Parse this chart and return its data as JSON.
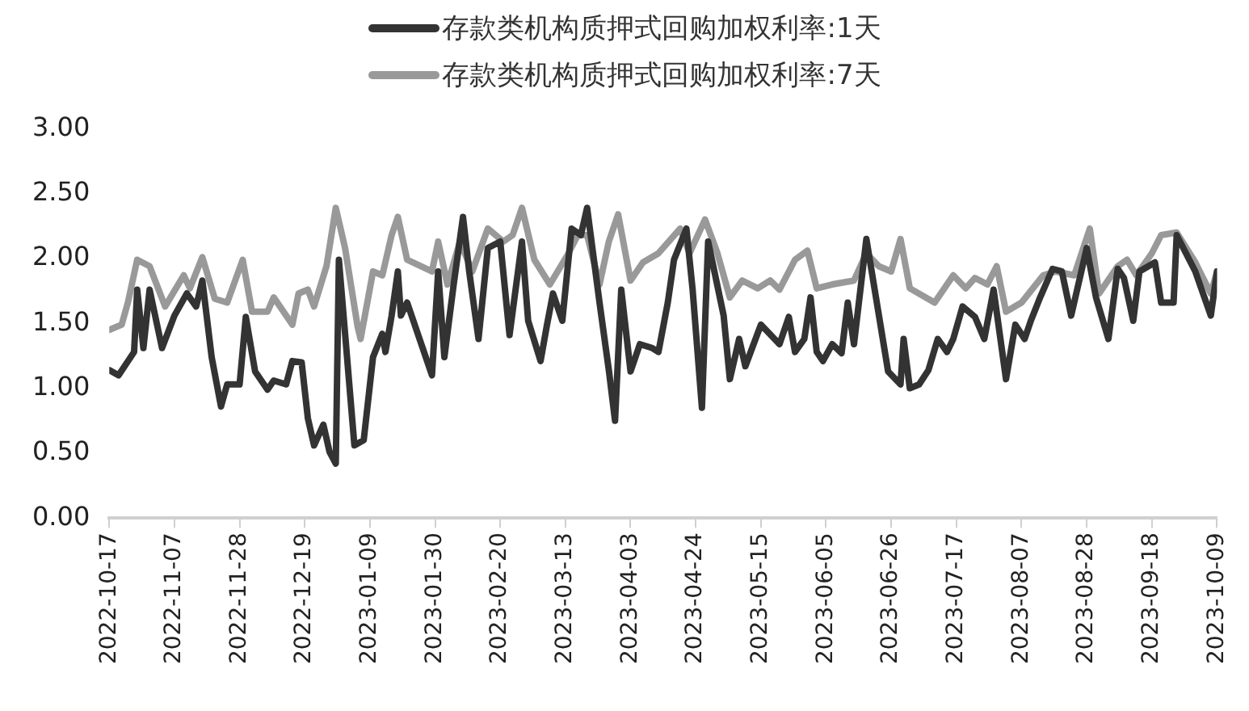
{
  "chart_data": {
    "type": "line",
    "legend": "top",
    "grid": false,
    "marker": "none",
    "line_style": "solid",
    "xlim": [
      "2022-10-17",
      "2023-10-09"
    ],
    "xticks": [
      "2022-10-17",
      "2022-11-07",
      "2022-11-28",
      "2022-12-19",
      "2023-01-09",
      "2023-01-30",
      "2023-02-20",
      "2023-03-13",
      "2023-04-03",
      "2023-04-24",
      "2023-05-15",
      "2023-06-05",
      "2023-06-26",
      "2023-07-17",
      "2023-08-07",
      "2023-08-28",
      "2023-09-18",
      "2023-10-09"
    ],
    "ylim": [
      0,
      3
    ],
    "yticks": [
      {
        "value": 0,
        "label": "0.00"
      },
      {
        "value": 0.5,
        "label": "0.50"
      },
      {
        "value": 1,
        "label": "1.00"
      },
      {
        "value": 1.5,
        "label": "1.50"
      },
      {
        "value": 2,
        "label": "2.00"
      },
      {
        "value": 2.5,
        "label": "2.50"
      },
      {
        "value": 3,
        "label": "3.00"
      }
    ],
    "series": [
      {
        "name": "存款类机构质押式回购加权利率:1天",
        "color": "#333333",
        "x": [
          "2022-10-17",
          "2022-10-20",
          "2022-10-25",
          "2022-10-26",
          "2022-10-28",
          "2022-10-30",
          "2022-11-03",
          "2022-11-07",
          "2022-11-11",
          "2022-11-14",
          "2022-11-16",
          "2022-11-19",
          "2022-11-22",
          "2022-11-24",
          "2022-11-28",
          "2022-11-30",
          "2022-12-03",
          "2022-12-07",
          "2022-12-09",
          "2022-12-13",
          "2022-12-15",
          "2022-12-18",
          "2022-12-20",
          "2022-12-22",
          "2022-12-25",
          "2022-12-27",
          "2022-12-29",
          "2022-12-30",
          "2023-01-01",
          "2023-01-04",
          "2023-01-07",
          "2023-01-10",
          "2023-01-13",
          "2023-01-14",
          "2023-01-16",
          "2023-01-18",
          "2023-01-19",
          "2023-01-21",
          "2023-01-29",
          "2023-01-31",
          "2023-02-02",
          "2023-02-05",
          "2023-02-08",
          "2023-02-10",
          "2023-02-13",
          "2023-02-16",
          "2023-02-20",
          "2023-02-23",
          "2023-02-27",
          "2023-03-01",
          "2023-03-05",
          "2023-03-07",
          "2023-03-09",
          "2023-03-12",
          "2023-03-15",
          "2023-03-18",
          "2023-03-20",
          "2023-03-24",
          "2023-03-27",
          "2023-03-29",
          "2023-03-31",
          "2023-04-03",
          "2023-04-06",
          "2023-04-10",
          "2023-04-12",
          "2023-04-15",
          "2023-04-17",
          "2023-04-21",
          "2023-04-23",
          "2023-04-26",
          "2023-04-28",
          "2023-05-03",
          "2023-05-05",
          "2023-05-08",
          "2023-05-10",
          "2023-05-15",
          "2023-05-21",
          "2023-05-24",
          "2023-05-26",
          "2023-05-29",
          "2023-05-31",
          "2023-06-02",
          "2023-06-04",
          "2023-06-07",
          "2023-06-10",
          "2023-06-12",
          "2023-06-14",
          "2023-06-18",
          "2023-06-25",
          "2023-06-29",
          "2023-06-30",
          "2023-07-02",
          "2023-07-05",
          "2023-07-08",
          "2023-07-11",
          "2023-07-14",
          "2023-07-16",
          "2023-07-19",
          "2023-07-23",
          "2023-07-26",
          "2023-07-29",
          "2023-08-02",
          "2023-08-05",
          "2023-08-08",
          "2023-08-10",
          "2023-08-13",
          "2023-08-17",
          "2023-08-20",
          "2023-08-23",
          "2023-08-28",
          "2023-08-31",
          "2023-09-04",
          "2023-09-07",
          "2023-09-09",
          "2023-09-12",
          "2023-09-14",
          "2023-09-19",
          "2023-09-21",
          "2023-09-25",
          "2023-09-26",
          "2023-10-02",
          "2023-10-07",
          "2023-10-09"
        ],
        "values": [
          1.14,
          1.1,
          1.28,
          1.76,
          1.31,
          1.76,
          1.31,
          1.56,
          1.73,
          1.63,
          1.83,
          1.24,
          0.86,
          1.03,
          1.03,
          1.55,
          1.13,
          0.99,
          1.06,
          1.03,
          1.21,
          1.2,
          0.77,
          0.56,
          0.72,
          0.51,
          0.42,
          1.99,
          1.42,
          0.56,
          0.6,
          1.24,
          1.42,
          1.28,
          1.56,
          1.9,
          1.56,
          1.66,
          1.1,
          1.9,
          1.24,
          1.8,
          2.32,
          1.9,
          1.38,
          2.08,
          2.13,
          1.41,
          2.13,
          1.52,
          1.21,
          1.48,
          1.73,
          1.52,
          2.23,
          2.18,
          2.39,
          1.66,
          1.14,
          0.75,
          1.76,
          1.13,
          1.34,
          1.31,
          1.28,
          1.66,
          1.99,
          2.23,
          1.76,
          0.85,
          2.13,
          1.56,
          1.07,
          1.38,
          1.17,
          1.49,
          1.34,
          1.55,
          1.28,
          1.38,
          1.7,
          1.28,
          1.21,
          1.34,
          1.27,
          1.66,
          1.34,
          2.15,
          1.13,
          1.03,
          1.38,
          1.0,
          1.03,
          1.14,
          1.38,
          1.28,
          1.38,
          1.63,
          1.55,
          1.38,
          1.76,
          1.07,
          1.49,
          1.38,
          1.52,
          1.7,
          1.92,
          1.9,
          1.56,
          2.08,
          1.7,
          1.38,
          1.92,
          1.85,
          1.52,
          1.9,
          1.97,
          1.66,
          1.66,
          2.18,
          1.9,
          1.56,
          1.9
        ]
      },
      {
        "name": "存款类机构质押式回购加权利率:7天",
        "color": "#999999",
        "x": [
          "2022-10-17",
          "2022-10-21",
          "2022-10-23",
          "2022-10-26",
          "2022-10-30",
          "2022-11-04",
          "2022-11-10",
          "2022-11-12",
          "2022-11-16",
          "2022-11-20",
          "2022-11-24",
          "2022-11-29",
          "2022-12-02",
          "2022-12-07",
          "2022-12-09",
          "2022-12-15",
          "2022-12-17",
          "2022-12-20",
          "2022-12-22",
          "2022-12-26",
          "2022-12-29",
          "2023-01-01",
          "2023-01-05",
          "2023-01-06",
          "2023-01-10",
          "2023-01-13",
          "2023-01-16",
          "2023-01-18",
          "2023-01-21",
          "2023-01-29",
          "2023-01-31",
          "2023-02-03",
          "2023-02-07",
          "2023-02-11",
          "2023-02-16",
          "2023-02-21",
          "2023-02-24",
          "2023-02-27",
          "2023-03-03",
          "2023-03-08",
          "2023-03-14",
          "2023-03-17",
          "2023-03-20",
          "2023-03-24",
          "2023-03-27",
          "2023-03-30",
          "2023-04-03",
          "2023-04-07",
          "2023-04-12",
          "2023-04-19",
          "2023-04-22",
          "2023-04-27",
          "2023-05-01",
          "2023-05-05",
          "2023-05-09",
          "2023-05-14",
          "2023-05-18",
          "2023-05-21",
          "2023-05-26",
          "2023-05-30",
          "2023-06-02",
          "2023-06-07",
          "2023-06-14",
          "2023-06-18",
          "2023-06-22",
          "2023-06-26",
          "2023-06-29",
          "2023-07-02",
          "2023-07-10",
          "2023-07-16",
          "2023-07-20",
          "2023-07-23",
          "2023-07-27",
          "2023-07-30",
          "2023-08-02",
          "2023-08-07",
          "2023-08-14",
          "2023-08-18",
          "2023-08-24",
          "2023-08-29",
          "2023-09-01",
          "2023-09-07",
          "2023-09-10",
          "2023-09-13",
          "2023-09-18",
          "2023-09-21",
          "2023-09-26",
          "2023-10-02",
          "2023-10-07",
          "2023-10-09"
        ],
        "values": [
          1.45,
          1.49,
          1.66,
          1.99,
          1.94,
          1.63,
          1.87,
          1.77,
          2.01,
          1.69,
          1.66,
          1.99,
          1.59,
          1.59,
          1.7,
          1.49,
          1.73,
          1.76,
          1.63,
          1.94,
          2.39,
          2.08,
          1.48,
          1.38,
          1.9,
          1.87,
          2.18,
          2.32,
          1.99,
          1.9,
          2.13,
          1.8,
          2.13,
          1.9,
          2.23,
          2.13,
          2.18,
          2.39,
          1.99,
          1.8,
          2.04,
          2.18,
          2.18,
          1.8,
          2.13,
          2.34,
          1.83,
          1.97,
          2.04,
          2.23,
          2.04,
          2.3,
          2.04,
          1.7,
          1.83,
          1.77,
          1.83,
          1.76,
          1.99,
          2.06,
          1.77,
          1.8,
          1.83,
          2.04,
          1.94,
          1.9,
          2.15,
          1.77,
          1.66,
          1.87,
          1.77,
          1.85,
          1.8,
          1.94,
          1.59,
          1.66,
          1.87,
          1.9,
          1.87,
          2.23,
          1.73,
          1.94,
          1.99,
          1.87,
          2.04,
          2.18,
          2.2,
          1.97,
          1.73,
          1.9
        ]
      }
    ]
  }
}
